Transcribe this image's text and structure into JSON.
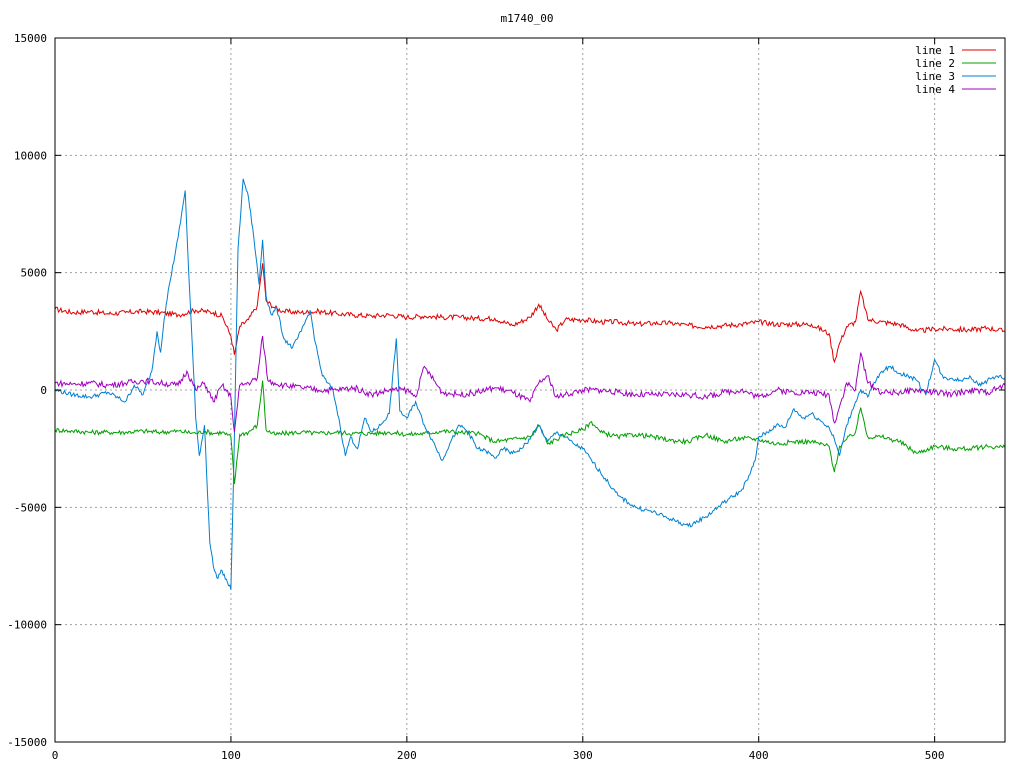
{
  "chart_data": {
    "type": "line",
    "title": "m1740_00",
    "xlabel": "",
    "ylabel": "",
    "xlim": [
      0,
      540
    ],
    "ylim": [
      -15000,
      15000
    ],
    "xticks": [
      0,
      100,
      200,
      300,
      400,
      500
    ],
    "yticks": [
      -15000,
      -10000,
      -5000,
      0,
      5000,
      10000,
      15000
    ],
    "grid": true,
    "legend_position": "top-right",
    "series": [
      {
        "name": "line 1",
        "color": "#e00000",
        "x": [
          0,
          10,
          20,
          30,
          40,
          50,
          60,
          70,
          80,
          90,
          95,
          100,
          102,
          105,
          110,
          115,
          118,
          120,
          125,
          130,
          140,
          150,
          160,
          170,
          180,
          190,
          200,
          210,
          220,
          230,
          240,
          250,
          260,
          270,
          275,
          280,
          285,
          290,
          300,
          310,
          320,
          330,
          340,
          350,
          360,
          370,
          380,
          390,
          400,
          410,
          420,
          430,
          440,
          443,
          446,
          450,
          455,
          458,
          462,
          470,
          480,
          490,
          500,
          510,
          520,
          530,
          540
        ],
        "y": [
          3450,
          3300,
          3350,
          3250,
          3300,
          3350,
          3300,
          3200,
          3400,
          3300,
          3150,
          2300,
          1500,
          2700,
          3000,
          3600,
          5400,
          3800,
          3500,
          3350,
          3300,
          3350,
          3250,
          3200,
          3150,
          3200,
          3100,
          3150,
          3100,
          3100,
          3050,
          3050,
          2750,
          3100,
          3650,
          3000,
          2550,
          3000,
          3000,
          2900,
          2900,
          2800,
          2850,
          2850,
          2750,
          2700,
          2750,
          2800,
          2900,
          2800,
          2800,
          2800,
          2400,
          1200,
          2000,
          2700,
          2900,
          4200,
          3000,
          2900,
          2800,
          2500,
          2600,
          2600,
          2550,
          2650,
          2500
        ]
      },
      {
        "name": "line 2",
        "color": "#00a000",
        "x": [
          0,
          10,
          20,
          30,
          40,
          50,
          60,
          70,
          80,
          85,
          90,
          95,
          100,
          102,
          105,
          110,
          115,
          118,
          120,
          125,
          130,
          140,
          150,
          160,
          170,
          180,
          190,
          200,
          210,
          220,
          230,
          240,
          250,
          260,
          270,
          275,
          280,
          290,
          300,
          305,
          310,
          320,
          330,
          340,
          350,
          360,
          370,
          380,
          390,
          400,
          410,
          420,
          430,
          440,
          443,
          446,
          450,
          455,
          458,
          462,
          470,
          480,
          490,
          500,
          510,
          520,
          530,
          540
        ],
        "y": [
          -1700,
          -1750,
          -1800,
          -1800,
          -1800,
          -1750,
          -1800,
          -1750,
          -1850,
          -1750,
          -1850,
          -1800,
          -2000,
          -4000,
          -1900,
          -1800,
          -1500,
          400,
          -1700,
          -1900,
          -1850,
          -1800,
          -1850,
          -1800,
          -1850,
          -1850,
          -1800,
          -1900,
          -1850,
          -1750,
          -1800,
          -1850,
          -2200,
          -2100,
          -2000,
          -1500,
          -2300,
          -1900,
          -1700,
          -1350,
          -1800,
          -2000,
          -1900,
          -2000,
          -2150,
          -2200,
          -1900,
          -2200,
          -2050,
          -2100,
          -2300,
          -2200,
          -2200,
          -2400,
          -3500,
          -2400,
          -2100,
          -1800,
          -750,
          -2000,
          -2000,
          -2200,
          -2700,
          -2400,
          -2500,
          -2500,
          -2400,
          -2450
        ]
      },
      {
        "name": "line 3",
        "color": "#0080d0",
        "x": [
          0,
          10,
          20,
          30,
          40,
          45,
          50,
          55,
          58,
          60,
          62,
          65,
          70,
          74,
          76,
          78,
          80,
          82,
          85,
          88,
          90,
          92,
          95,
          98,
          100,
          102,
          104,
          107,
          110,
          113,
          116,
          118,
          120,
          123,
          126,
          130,
          135,
          140,
          145,
          148,
          152,
          155,
          158,
          162,
          165,
          168,
          172,
          176,
          180,
          185,
          190,
          194,
          196,
          200,
          205,
          210,
          215,
          220,
          225,
          230,
          235,
          240,
          245,
          250,
          255,
          260,
          265,
          270,
          275,
          280,
          285,
          290,
          295,
          300,
          305,
          310,
          320,
          330,
          340,
          350,
          360,
          370,
          380,
          390,
          395,
          398,
          400,
          405,
          410,
          415,
          420,
          425,
          430,
          435,
          440,
          443,
          446,
          450,
          455,
          458,
          462,
          465,
          470,
          475,
          480,
          485,
          490,
          495,
          500,
          505,
          510,
          515,
          520,
          525,
          530,
          535,
          540
        ],
        "y": [
          0,
          -200,
          -300,
          -100,
          -500,
          200,
          -200,
          800,
          2500,
          1600,
          3000,
          4500,
          6500,
          8500,
          5000,
          2000,
          -1200,
          -2800,
          -1500,
          -6500,
          -7500,
          -8000,
          -7700,
          -8200,
          -8500,
          -2000,
          6000,
          9000,
          8200,
          6500,
          4500,
          6400,
          4000,
          3200,
          3500,
          2200,
          1800,
          2500,
          3400,
          2000,
          600,
          300,
          0,
          -1500,
          -2800,
          -2000,
          -2500,
          -1200,
          -1800,
          -1500,
          -1000,
          2200,
          -900,
          -1200,
          -500,
          -1500,
          -2200,
          -3000,
          -2200,
          -1500,
          -1800,
          -2500,
          -2600,
          -2900,
          -2500,
          -2700,
          -2500,
          -2100,
          -1500,
          -2200,
          -1800,
          -2000,
          -2300,
          -2500,
          -3000,
          -3500,
          -4500,
          -5000,
          -5200,
          -5500,
          -5800,
          -5400,
          -4800,
          -4300,
          -3600,
          -3000,
          -2000,
          -1800,
          -1500,
          -1600,
          -800,
          -1200,
          -1000,
          -1300,
          -1600,
          -2100,
          -2800,
          -1500,
          -500,
          0,
          -300,
          200,
          800,
          1000,
          700,
          600,
          400,
          -200,
          1300,
          500,
          500,
          400,
          600,
          200,
          400,
          600,
          500
        ]
      },
      {
        "name": "line 4",
        "color": "#a000c0",
        "x": [
          0,
          10,
          20,
          30,
          40,
          50,
          60,
          70,
          75,
          80,
          85,
          90,
          95,
          100,
          102,
          105,
          110,
          115,
          118,
          121,
          125,
          130,
          140,
          150,
          160,
          170,
          180,
          190,
          200,
          205,
          210,
          220,
          230,
          240,
          250,
          260,
          270,
          275,
          280,
          285,
          290,
          300,
          310,
          320,
          330,
          340,
          350,
          360,
          370,
          380,
          390,
          400,
          410,
          420,
          430,
          440,
          443,
          446,
          450,
          455,
          458,
          462,
          470,
          480,
          490,
          500,
          510,
          520,
          530,
          540
        ],
        "y": [
          300,
          250,
          300,
          200,
          300,
          400,
          300,
          200,
          800,
          0,
          300,
          -500,
          200,
          -300,
          -1800,
          200,
          300,
          500,
          2300,
          400,
          300,
          200,
          100,
          0,
          0,
          100,
          -200,
          0,
          0,
          -300,
          1000,
          -100,
          -200,
          -100,
          100,
          -100,
          -500,
          300,
          600,
          -300,
          -200,
          0,
          0,
          -100,
          -200,
          -200,
          -200,
          -200,
          -300,
          -100,
          0,
          -300,
          0,
          -100,
          -100,
          -200,
          -1400,
          -700,
          300,
          0,
          1600,
          300,
          -100,
          -100,
          0,
          -100,
          -200,
          0,
          -100,
          200
        ]
      }
    ]
  }
}
